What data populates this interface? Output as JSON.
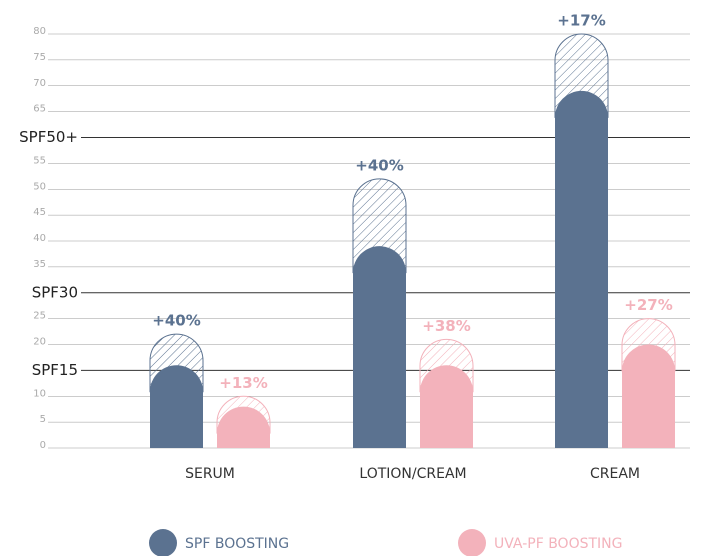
{
  "chart_data": {
    "type": "bar",
    "categories": [
      "SERUM",
      "LOTION/CREAM",
      "CREAM"
    ],
    "series": [
      {
        "name": "SPF BOOSTING",
        "color": "#5b7290",
        "values": [
          16,
          39,
          69
        ],
        "boost_values": [
          6,
          13,
          11
        ],
        "boost_labels": [
          "+40%",
          "+40%",
          "+17%"
        ]
      },
      {
        "name": "UVA-PF BOOSTING",
        "color": "#f3b2bb",
        "values": [
          8,
          16,
          20
        ],
        "boost_values": [
          2,
          5,
          5
        ],
        "boost_labels": [
          "+13%",
          "+38%",
          "+27%"
        ]
      }
    ],
    "ylim": [
      0,
      80
    ],
    "yticks": [
      0,
      5,
      10,
      {
        "value": 15,
        "label": "SPF15"
      },
      20,
      25,
      {
        "value": 30,
        "label": "SPF30"
      },
      35,
      40,
      45,
      50,
      55,
      {
        "value": 60,
        "label": "SPF50+"
      },
      65,
      70,
      75,
      80
    ],
    "grid": true
  }
}
